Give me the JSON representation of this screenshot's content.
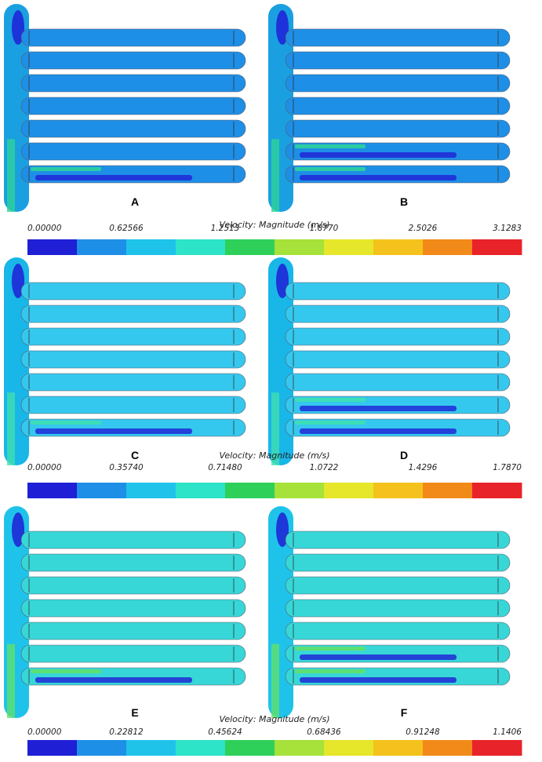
{
  "panels": [
    {
      "label": "A",
      "inlet_color": "#1aa0e0",
      "tube_color": "#1e8fe6",
      "accent": "#2dd39a"
    },
    {
      "label": "B",
      "inlet_color": "#1aa0e0",
      "tube_color": "#1e8fe6",
      "accent": "#2dd39a"
    },
    {
      "label": "C",
      "inlet_color": "#19b6e8",
      "tube_color": "#35c8ee",
      "accent": "#3fe0b0"
    },
    {
      "label": "D",
      "inlet_color": "#19b6e8",
      "tube_color": "#35c8ee",
      "accent": "#3fe0b0"
    },
    {
      "label": "E",
      "inlet_color": "#1fc3ea",
      "tube_color": "#37d7d8",
      "accent": "#5fe16a"
    },
    {
      "label": "F",
      "inlet_color": "#1fc3ea",
      "tube_color": "#37d7d8",
      "accent": "#5fe16a"
    }
  ],
  "legends": [
    {
      "title": "Velocity: Magnitude (m/s)",
      "ticks": [
        "0.00000",
        "0.62566",
        "1.2513",
        "1.8770",
        "2.5026",
        "3.1283"
      ]
    },
    {
      "title": "Velocity: Magnitude (m/s)",
      "ticks": [
        "0.00000",
        "0.35740",
        "0.71480",
        "1.0722",
        "1.4296",
        "1.7870"
      ]
    },
    {
      "title": "Velocity: Magnitude (m/s)",
      "ticks": [
        "0.00000",
        "0.22812",
        "0.45624",
        "0.68436",
        "0.91248",
        "1.1406"
      ]
    }
  ],
  "colormap": [
    "#1f1fd6",
    "#1e8fe6",
    "#1fc3ea",
    "#2de3c8",
    "#2fd05a",
    "#a6e23a",
    "#e6e62a",
    "#f5c21d",
    "#f28a1a",
    "#e8242a"
  ]
}
